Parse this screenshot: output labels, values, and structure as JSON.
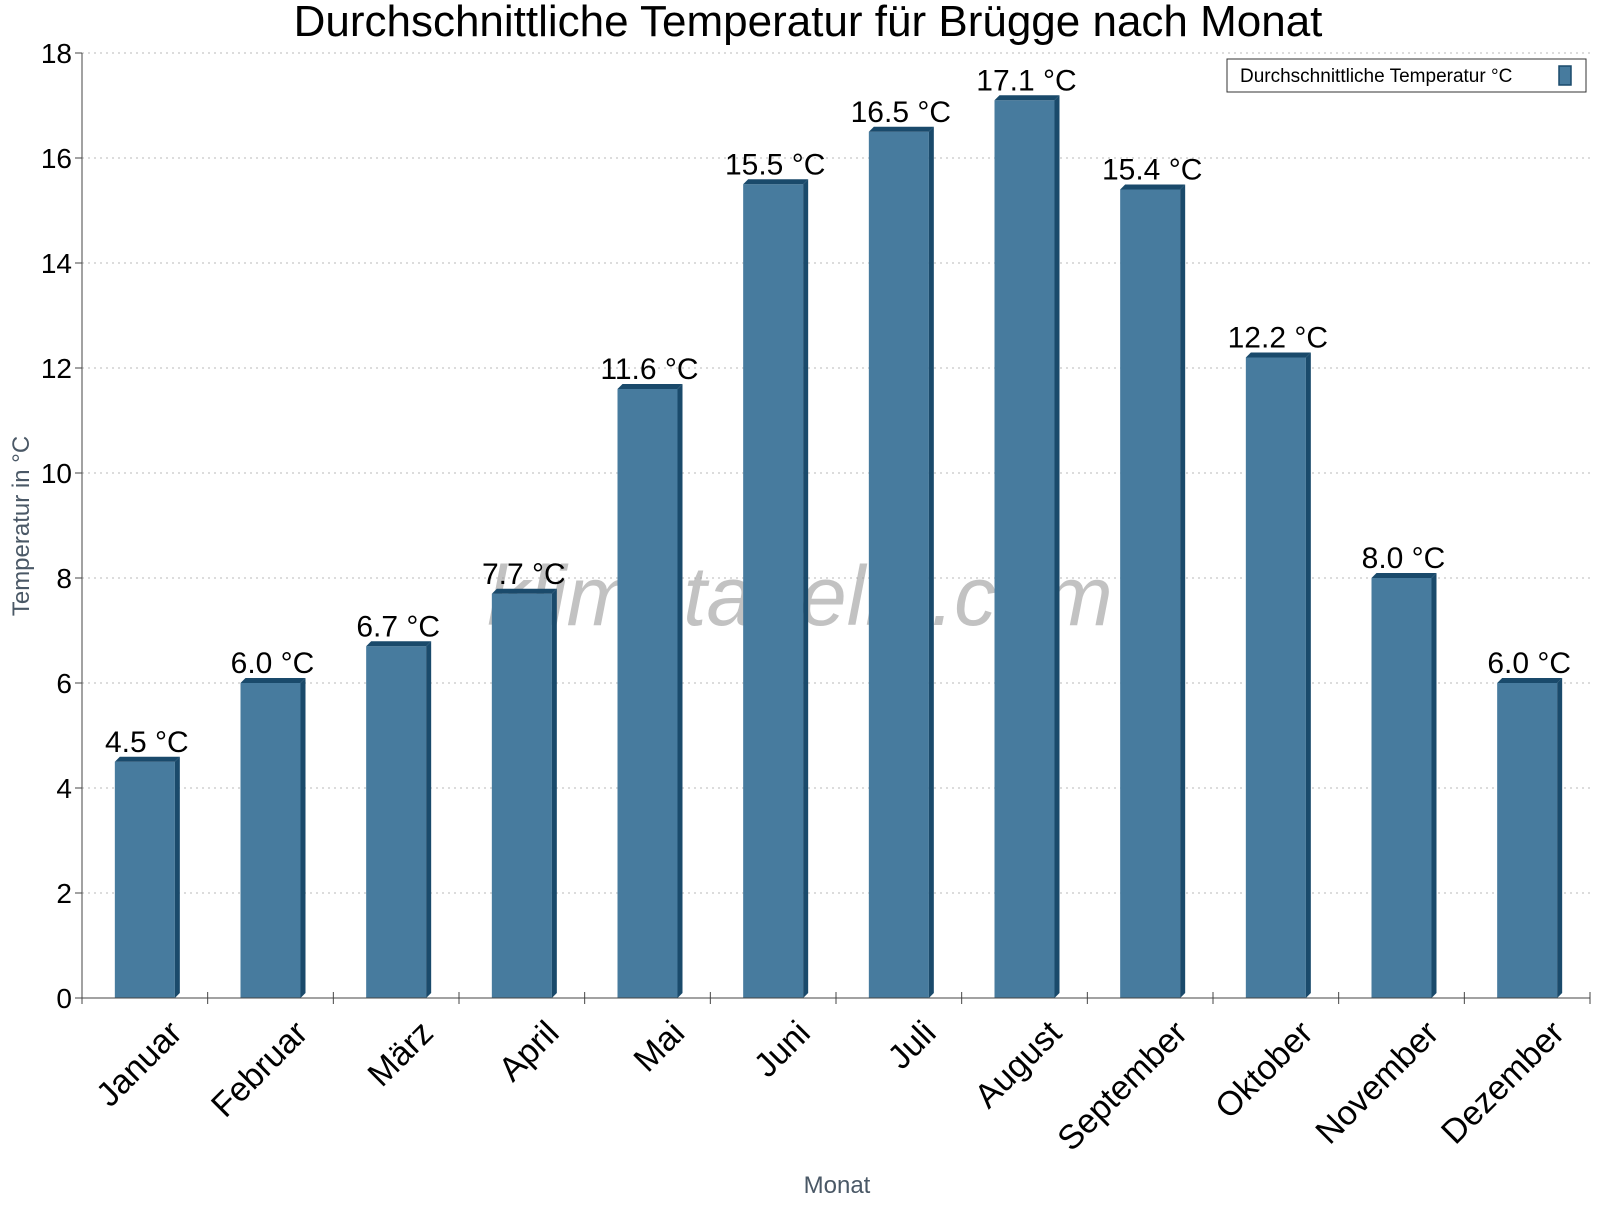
{
  "chart_data": {
    "type": "bar",
    "title": "Durchschnittliche Temperatur für Brügge nach Monat",
    "xlabel": "Monat",
    "ylabel": "Temperatur in °C",
    "categories": [
      "Januar",
      "Februar",
      "März",
      "April",
      "Mai",
      "Juni",
      "Juli",
      "August",
      "September",
      "Oktober",
      "November",
      "Dezember"
    ],
    "series": [
      {
        "name": "Durchschnittliche Temperatur °C",
        "values": [
          4.5,
          6.0,
          6.7,
          7.7,
          11.6,
          15.5,
          16.5,
          17.1,
          15.4,
          12.2,
          8.0,
          6.0
        ],
        "data_labels": [
          "4.5 °C",
          "6.0 °C",
          "6.7 °C",
          "7.7 °C",
          "11.6 °C",
          "15.5 °C",
          "16.5 °C",
          "17.1 °C",
          "15.4 °C",
          "12.2 °C",
          "8.0 °C",
          "6.0 °C"
        ]
      }
    ],
    "ylim": [
      0,
      18
    ],
    "yticks": [
      0,
      2,
      4,
      6,
      8,
      10,
      12,
      14,
      16,
      18
    ],
    "grid": true,
    "legend_position": "top-right",
    "bar_color": "#477b9e",
    "bar_edge_color": "#1a4a6b",
    "watermark": "klimatabelle.com"
  }
}
